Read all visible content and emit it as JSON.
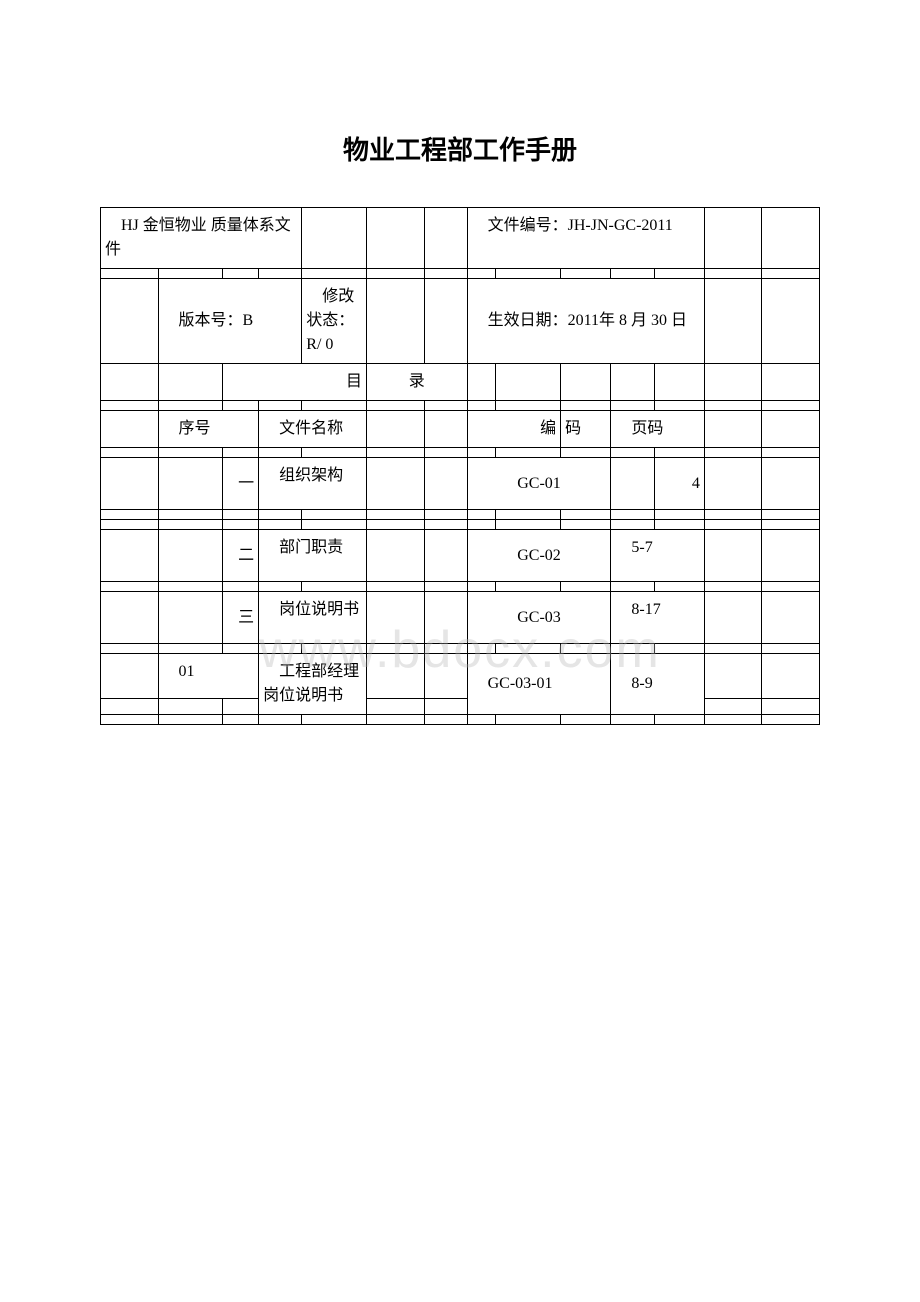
{
  "title": "物业工程部工作手册",
  "header": {
    "company": "　HJ 金恒物业 质量体系文件",
    "docNo": "　文件编号：JH-JN-GC-2011",
    "version": "　版本号：B",
    "revision": "　修改状态：R/ 0",
    "effective": "　生效日期：2011年 8 月 30 日"
  },
  "toc": {
    "mu": "目",
    "lu": "录",
    "seq": "　序号",
    "name": "　文件名称",
    "code_label_1": "编",
    "code_label_2": "码",
    "page_label": "　页码"
  },
  "rows": [
    {
      "seq": "一",
      "name": "　组织架构",
      "code": "GC-01",
      "page": "4"
    },
    {
      "seq": "二",
      "name": "　部门职责",
      "code": "GC-02",
      "page": "　5-7"
    },
    {
      "seq": "三",
      "name": "　岗位说明书",
      "code": "GC-03",
      "page": "　8-17"
    },
    {
      "seq": "　01",
      "name": "　工程部经理岗位说明书",
      "code": "　GC-03-01",
      "page": "　8-9"
    }
  ],
  "watermark": "www.bdocx.com",
  "colors": {
    "text": "#000000",
    "bg": "#ffffff",
    "wm": "rgba(180,180,180,0.35)"
  }
}
